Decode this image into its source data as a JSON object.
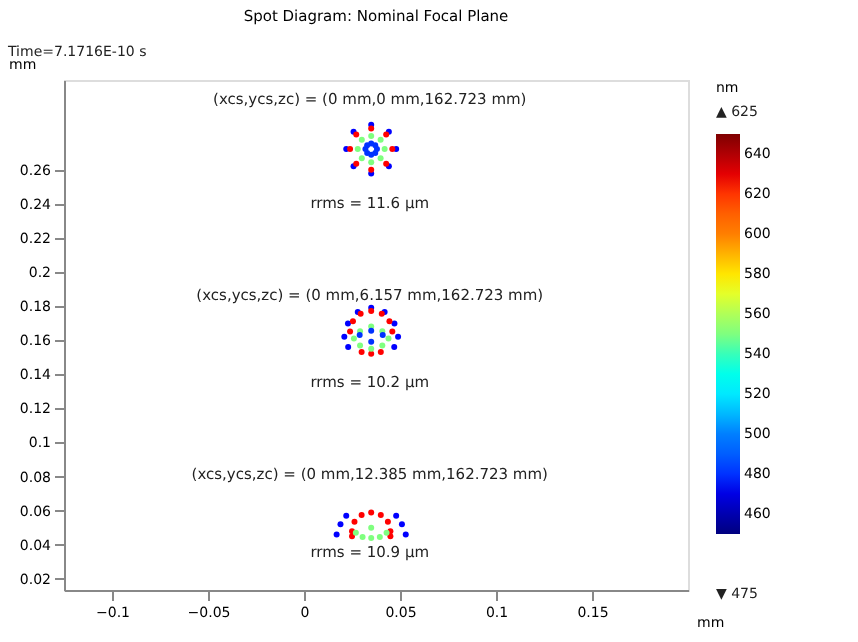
{
  "chart_data": {
    "type": "scatter",
    "title": "Spot Diagram: Nominal Focal Plane",
    "xlabel": "mm",
    "ylabel": "mm",
    "clabel": "nm",
    "x": [
      0.048,
      0.0442,
      0.035,
      0.0258,
      0.022,
      0.0258,
      0.035,
      0.0442,
      0.046,
      0.0428,
      0.035,
      0.0272,
      0.024,
      0.0272,
      0.035,
      0.0428,
      0.042,
      0.0399,
      0.035,
      0.0301,
      0.028,
      0.0301,
      0.035,
      0.0399,
      0.038,
      0.0371,
      0.035,
      0.0329,
      0.032,
      0.0329,
      0.035,
      0.0371,
      0.049,
      0.0471,
      0.042,
      0.035,
      0.028,
      0.0229,
      0.021,
      0.047,
      0.023,
      0.046,
      0.0445,
      0.0405,
      0.035,
      0.0295,
      0.0255,
      0.024,
      0.03,
      0.035,
      0.04,
      0.044,
      0.0408,
      0.035,
      0.0292,
      0.026,
      0.0292,
      0.035,
      0.0408,
      0.041,
      0.035,
      0.029,
      0.035,
      0.017,
      0.019,
      0.022,
      0.053,
      0.051,
      0.048,
      0.045,
      0.0437,
      0.04,
      0.035,
      0.03,
      0.0263,
      0.025,
      0.025,
      0.045,
      0.043,
      0.035,
      0.027,
      0.035,
      0.0395,
      0.0305
    ],
    "values": [
      0.272,
      0.2821,
      0.2863,
      0.2821,
      0.272,
      0.2619,
      0.2577,
      0.2619,
      0.272,
      0.2806,
      0.2841,
      0.2806,
      0.272,
      0.2634,
      0.2599,
      0.2634,
      0.272,
      0.2774,
      0.2797,
      0.2774,
      0.272,
      0.2666,
      0.2643,
      0.2666,
      0.272,
      0.2743,
      0.2753,
      0.2743,
      0.272,
      0.2697,
      0.2687,
      0.2697,
      0.162,
      0.1697,
      0.1765,
      0.179,
      0.1765,
      0.1697,
      0.162,
      0.156,
      0.156,
      0.165,
      0.1711,
      0.1755,
      0.1771,
      0.1755,
      0.1711,
      0.165,
      0.153,
      0.152,
      0.153,
      0.161,
      0.1652,
      0.168,
      0.1652,
      0.161,
      0.1568,
      0.155,
      0.1568,
      0.163,
      0.1655,
      0.163,
      0.159,
      0.046,
      0.052,
      0.057,
      0.046,
      0.052,
      0.057,
      0.048,
      0.0535,
      0.0575,
      0.059,
      0.0575,
      0.0535,
      0.048,
      0.045,
      0.045,
      0.047,
      0.05,
      0.047,
      0.044,
      0.0445,
      0.0445
    ],
    "cvalues": [
      475,
      475,
      475,
      475,
      475,
      475,
      475,
      475,
      625,
      625,
      625,
      625,
      625,
      625,
      625,
      625,
      550,
      550,
      550,
      550,
      550,
      550,
      550,
      550,
      480,
      480,
      480,
      480,
      480,
      480,
      480,
      480,
      475,
      475,
      475,
      475,
      475,
      475,
      475,
      475,
      475,
      625,
      625,
      625,
      625,
      625,
      625,
      625,
      625,
      625,
      625,
      550,
      550,
      550,
      550,
      550,
      550,
      550,
      550,
      480,
      480,
      480,
      480,
      475,
      475,
      475,
      475,
      475,
      475,
      625,
      625,
      625,
      625,
      625,
      625,
      625,
      625,
      625,
      550,
      550,
      550,
      550,
      550,
      550
    ],
    "xlim": [
      -0.125,
      0.2
    ],
    "xticks": [
      -0.1,
      -0.05,
      0,
      0.05,
      0.1,
      0.15
    ],
    "ylim": [
      0.0135,
      0.3125
    ],
    "yticks": [
      0.02,
      0.04,
      0.06,
      0.08,
      0.1,
      0.12,
      0.14,
      0.16,
      0.18,
      0.2,
      0.22,
      0.24,
      0.26
    ],
    "clim": [
      450,
      650
    ],
    "cticks": [
      460,
      480,
      500,
      520,
      540,
      560,
      580,
      600,
      620,
      640
    ],
    "marker": "circle",
    "grid": false,
    "annotations": [
      "Time=7.1716E-10 s",
      "▲ 625",
      "▼ 475",
      "(xcs,ycs,zc) = (0 mm,0 mm,162.723 mm)",
      "rrms = 11.6 µm",
      "(xcs,ycs,zc) = (0 mm,6.157 mm,162.723 mm)",
      "rrms = 10.2 µm",
      "(xcs,ycs,zc) = (0 mm,12.385 mm,162.723 mm)",
      "rrms = 10.9 µm"
    ]
  }
}
